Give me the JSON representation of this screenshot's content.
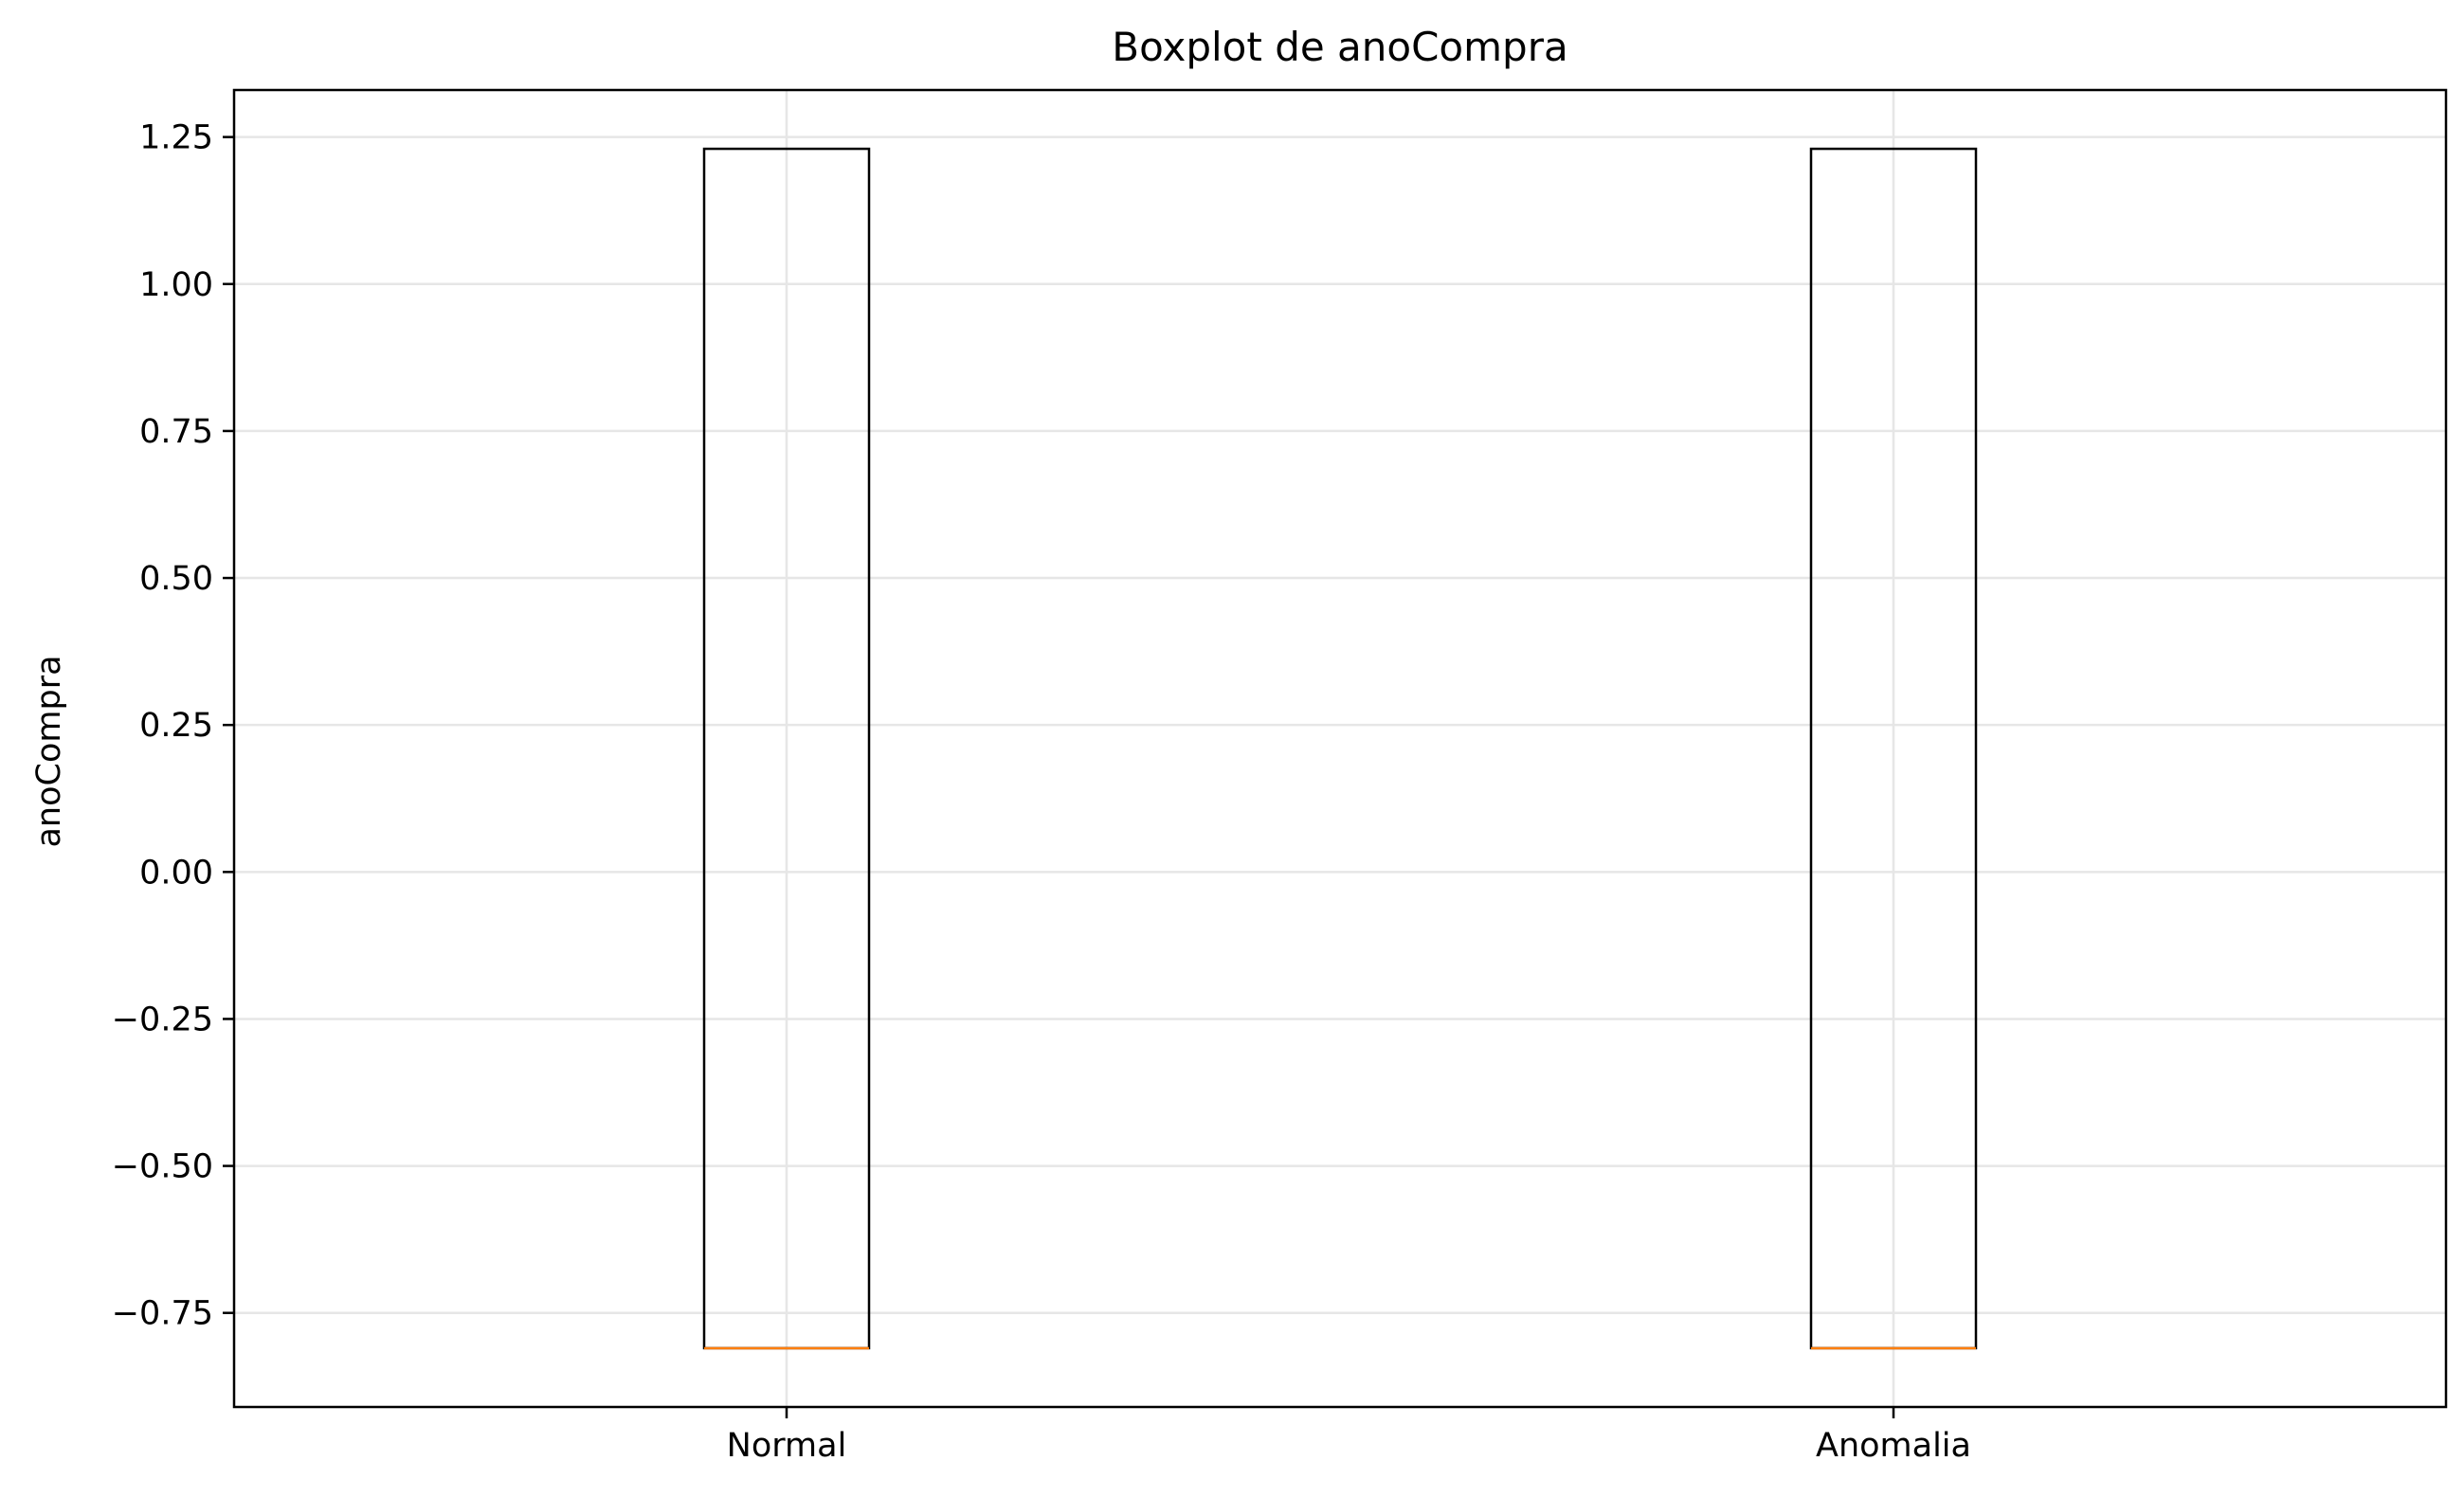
{
  "chart_data": {
    "type": "boxplot",
    "title": "Boxplot de anoCompra",
    "xlabel": "",
    "ylabel": "anoCompra",
    "categories": [
      "Normal",
      "Anomalia"
    ],
    "boxes": [
      {
        "category": "Normal",
        "q1": -0.81,
        "median": -0.81,
        "q3": 1.23,
        "whisker_low": -0.81,
        "whisker_high": 1.23
      },
      {
        "category": "Anomalia",
        "q1": -0.81,
        "median": -0.81,
        "q3": 1.23,
        "whisker_low": -0.81,
        "whisker_high": 1.23
      }
    ],
    "ylim": [
      -0.91,
      1.33
    ],
    "yticks": [
      -0.75,
      -0.5,
      -0.25,
      0.0,
      0.25,
      0.5,
      0.75,
      1.0,
      1.25
    ],
    "ytick_labels": [
      "−0.75",
      "−0.50",
      "−0.25",
      "0.00",
      "0.25",
      "0.50",
      "0.75",
      "1.00",
      "1.25"
    ],
    "grid": true,
    "colors": {
      "box": "#000000",
      "median": "#ff7f0e",
      "grid": "#e6e6e6"
    }
  }
}
